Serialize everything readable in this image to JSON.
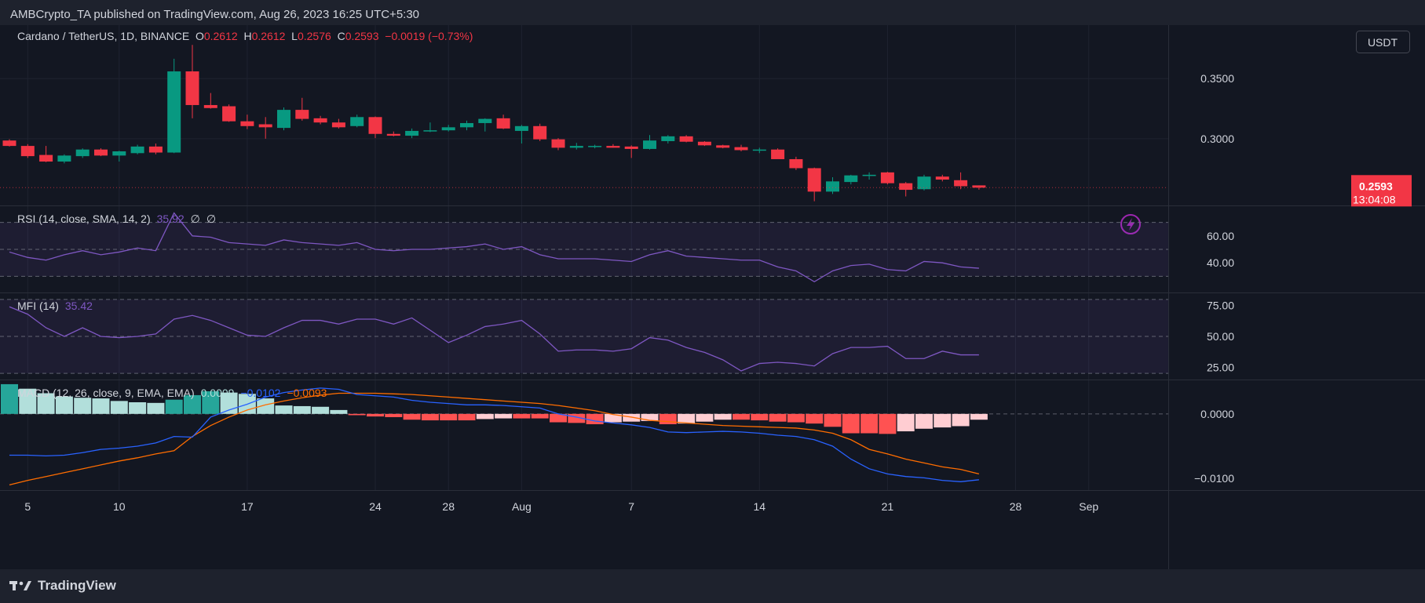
{
  "header": {
    "publisher": "AMBCrypto_TA published on TradingView.com, Aug 26, 2023 16:25 UTC+5:30"
  },
  "legend": {
    "symbol": "Cardano / TetherUS, 1D, BINANCE",
    "o_label": "O",
    "o": "0.2612",
    "h_label": "H",
    "h": "0.2612",
    "l_label": "L",
    "l": "0.2576",
    "c_label": "C",
    "c": "0.2593",
    "change": "−0.0019 (−0.73%)"
  },
  "currency_button": "USDT",
  "price_badge": {
    "price": "0.2593",
    "countdown": "13:04:08"
  },
  "footer": {
    "brand": "TradingView"
  },
  "colors": {
    "up": "#089981",
    "down": "#f23645",
    "rsi": "#7e57c2",
    "macd": "#2962ff",
    "signal": "#ff6d00",
    "hist_up_strong": "#26a69a",
    "hist_up_weak": "#b2dfdb",
    "hist_down_strong": "#ff5252",
    "hist_down_weak": "#ffcdd2"
  },
  "chart_data": [
    {
      "type": "candlestick",
      "title": "Cardano / TetherUS, 1D, BINANCE",
      "x_start_date": "2023-07-04",
      "ylim": [
        0.2445,
        0.3945
      ],
      "yticks": [
        "0.3500",
        "0.3000"
      ],
      "xticks": [
        {
          "label": "5",
          "date": "2023-07-05"
        },
        {
          "label": "10",
          "date": "2023-07-10"
        },
        {
          "label": "17",
          "date": "2023-07-17"
        },
        {
          "label": "24",
          "date": "2023-07-24"
        },
        {
          "label": "28",
          "date": "2023-07-28"
        },
        {
          "label": "Aug",
          "date": "2023-08-01"
        },
        {
          "label": "7",
          "date": "2023-08-07"
        },
        {
          "label": "14",
          "date": "2023-08-14"
        },
        {
          "label": "21",
          "date": "2023-08-21"
        },
        {
          "label": "28",
          "date": "2023-08-28"
        },
        {
          "label": "Sep",
          "date": "2023-09-01"
        }
      ],
      "candles": [
        {
          "d": "2023-07-04",
          "o": 0.2985,
          "h": 0.2995,
          "l": 0.2935,
          "c": 0.294
        },
        {
          "d": "2023-07-05",
          "o": 0.294,
          "h": 0.2955,
          "l": 0.284,
          "c": 0.2855
        },
        {
          "d": "2023-07-06",
          "o": 0.2865,
          "h": 0.294,
          "l": 0.2805,
          "c": 0.281
        },
        {
          "d": "2023-07-07",
          "o": 0.281,
          "h": 0.287,
          "l": 0.2795,
          "c": 0.286
        },
        {
          "d": "2023-07-08",
          "o": 0.2855,
          "h": 0.292,
          "l": 0.284,
          "c": 0.291
        },
        {
          "d": "2023-07-09",
          "o": 0.291,
          "h": 0.292,
          "l": 0.2855,
          "c": 0.286
        },
        {
          "d": "2023-07-10",
          "o": 0.286,
          "h": 0.29,
          "l": 0.281,
          "c": 0.2895
        },
        {
          "d": "2023-07-11",
          "o": 0.288,
          "h": 0.295,
          "l": 0.287,
          "c": 0.2935
        },
        {
          "d": "2023-07-12",
          "o": 0.2935,
          "h": 0.296,
          "l": 0.287,
          "c": 0.2885
        },
        {
          "d": "2023-07-13",
          "o": 0.2885,
          "h": 0.3665,
          "l": 0.288,
          "c": 0.356
        },
        {
          "d": "2023-07-14",
          "o": 0.356,
          "h": 0.378,
          "l": 0.317,
          "c": 0.328
        },
        {
          "d": "2023-07-15",
          "o": 0.328,
          "h": 0.338,
          "l": 0.325,
          "c": 0.3255
        },
        {
          "d": "2023-07-16",
          "o": 0.327,
          "h": 0.3285,
          "l": 0.314,
          "c": 0.3145
        },
        {
          "d": "2023-07-17",
          "o": 0.3145,
          "h": 0.32,
          "l": 0.308,
          "c": 0.3105
        },
        {
          "d": "2023-07-18",
          "o": 0.312,
          "h": 0.318,
          "l": 0.3,
          "c": 0.3095
        },
        {
          "d": "2023-07-19",
          "o": 0.309,
          "h": 0.326,
          "l": 0.307,
          "c": 0.324
        },
        {
          "d": "2023-07-20",
          "o": 0.324,
          "h": 0.334,
          "l": 0.315,
          "c": 0.3165
        },
        {
          "d": "2023-07-21",
          "o": 0.317,
          "h": 0.319,
          "l": 0.312,
          "c": 0.3135
        },
        {
          "d": "2023-07-22",
          "o": 0.3135,
          "h": 0.3165,
          "l": 0.3085,
          "c": 0.3095
        },
        {
          "d": "2023-07-23",
          "o": 0.3105,
          "h": 0.32,
          "l": 0.3095,
          "c": 0.318
        },
        {
          "d": "2023-07-24",
          "o": 0.318,
          "h": 0.3185,
          "l": 0.3005,
          "c": 0.304
        },
        {
          "d": "2023-07-25",
          "o": 0.304,
          "h": 0.306,
          "l": 0.302,
          "c": 0.3025
        },
        {
          "d": "2023-07-26",
          "o": 0.3025,
          "h": 0.3085,
          "l": 0.3005,
          "c": 0.3065
        },
        {
          "d": "2023-07-27",
          "o": 0.3065,
          "h": 0.3135,
          "l": 0.3055,
          "c": 0.307
        },
        {
          "d": "2023-07-28",
          "o": 0.307,
          "h": 0.3115,
          "l": 0.306,
          "c": 0.3095
        },
        {
          "d": "2023-07-29",
          "o": 0.3095,
          "h": 0.315,
          "l": 0.307,
          "c": 0.313
        },
        {
          "d": "2023-07-30",
          "o": 0.313,
          "h": 0.317,
          "l": 0.306,
          "c": 0.3165
        },
        {
          "d": "2023-07-31",
          "o": 0.317,
          "h": 0.32,
          "l": 0.308,
          "c": 0.3085
        },
        {
          "d": "2023-08-01",
          "o": 0.3065,
          "h": 0.3115,
          "l": 0.296,
          "c": 0.3105
        },
        {
          "d": "2023-08-02",
          "o": 0.3105,
          "h": 0.3125,
          "l": 0.298,
          "c": 0.2995
        },
        {
          "d": "2023-08-03",
          "o": 0.2995,
          "h": 0.3005,
          "l": 0.2905,
          "c": 0.2925
        },
        {
          "d": "2023-08-04",
          "o": 0.2925,
          "h": 0.2965,
          "l": 0.291,
          "c": 0.294
        },
        {
          "d": "2023-08-05",
          "o": 0.2935,
          "h": 0.295,
          "l": 0.292,
          "c": 0.294
        },
        {
          "d": "2023-08-06",
          "o": 0.294,
          "h": 0.2955,
          "l": 0.2925,
          "c": 0.2925
        },
        {
          "d": "2023-08-07",
          "o": 0.2935,
          "h": 0.2945,
          "l": 0.284,
          "c": 0.2915
        },
        {
          "d": "2023-08-08",
          "o": 0.2915,
          "h": 0.303,
          "l": 0.291,
          "c": 0.2985
        },
        {
          "d": "2023-08-09",
          "o": 0.298,
          "h": 0.303,
          "l": 0.296,
          "c": 0.302
        },
        {
          "d": "2023-08-10",
          "o": 0.302,
          "h": 0.303,
          "l": 0.297,
          "c": 0.2975
        },
        {
          "d": "2023-08-11",
          "o": 0.2975,
          "h": 0.298,
          "l": 0.294,
          "c": 0.2945
        },
        {
          "d": "2023-08-12",
          "o": 0.2945,
          "h": 0.295,
          "l": 0.292,
          "c": 0.2925
        },
        {
          "d": "2023-08-13",
          "o": 0.293,
          "h": 0.295,
          "l": 0.2895,
          "c": 0.2905
        },
        {
          "d": "2023-08-14",
          "o": 0.2905,
          "h": 0.2925,
          "l": 0.288,
          "c": 0.291
        },
        {
          "d": "2023-08-15",
          "o": 0.291,
          "h": 0.292,
          "l": 0.284,
          "c": 0.283
        },
        {
          "d": "2023-08-16",
          "o": 0.283,
          "h": 0.285,
          "l": 0.274,
          "c": 0.2755
        },
        {
          "d": "2023-08-17",
          "o": 0.2755,
          "h": 0.276,
          "l": 0.248,
          "c": 0.256
        },
        {
          "d": "2023-08-18",
          "o": 0.256,
          "h": 0.268,
          "l": 0.254,
          "c": 0.2645
        },
        {
          "d": "2023-08-19",
          "o": 0.264,
          "h": 0.27,
          "l": 0.262,
          "c": 0.2695
        },
        {
          "d": "2023-08-20",
          "o": 0.269,
          "h": 0.272,
          "l": 0.266,
          "c": 0.27
        },
        {
          "d": "2023-08-21",
          "o": 0.272,
          "h": 0.2725,
          "l": 0.262,
          "c": 0.263
        },
        {
          "d": "2023-08-22",
          "o": 0.263,
          "h": 0.264,
          "l": 0.252,
          "c": 0.2575
        },
        {
          "d": "2023-08-23",
          "o": 0.258,
          "h": 0.27,
          "l": 0.257,
          "c": 0.2685
        },
        {
          "d": "2023-08-24",
          "o": 0.2685,
          "h": 0.27,
          "l": 0.2645,
          "c": 0.266
        },
        {
          "d": "2023-08-25",
          "o": 0.2655,
          "h": 0.272,
          "l": 0.258,
          "c": 0.2605
        },
        {
          "d": "2023-08-26",
          "o": 0.2612,
          "h": 0.2612,
          "l": 0.2576,
          "c": 0.2593
        }
      ]
    },
    {
      "type": "line",
      "title": "RSI (14, close, SMA, 14, 2)",
      "value_label": "35.92",
      "extra_labels": [
        "∅",
        "∅"
      ],
      "ylim": [
        18,
        82
      ],
      "band": [
        30,
        70
      ],
      "midline": 50,
      "yticks": [
        "60.00",
        "40.00"
      ],
      "values": [
        48,
        44,
        42,
        46,
        49,
        46,
        48,
        51,
        49,
        77,
        60,
        59,
        55,
        54,
        53,
        57,
        55,
        54,
        53,
        55,
        50,
        49,
        50,
        50,
        51,
        52,
        54,
        50,
        52,
        46,
        43,
        43,
        43,
        42,
        41,
        46,
        49,
        45,
        44,
        43,
        42,
        42,
        37,
        34,
        26,
        34,
        38,
        39,
        35,
        34,
        41,
        40,
        37,
        36
      ]
    },
    {
      "type": "line",
      "title": "MFI (14)",
      "value_label": "35.42",
      "ylim": [
        15,
        85
      ],
      "band": [
        20,
        80
      ],
      "midline": 50,
      "yticks": [
        "75.00",
        "50.00",
        "25.00"
      ],
      "values": [
        74,
        68,
        57,
        50,
        57,
        50,
        49,
        50,
        52,
        64,
        67,
        63,
        57,
        51,
        50,
        57,
        63,
        63,
        60,
        64,
        64,
        60,
        65,
        55,
        45,
        51,
        58,
        60,
        63,
        52,
        38,
        39,
        39,
        38,
        40,
        49,
        47,
        41,
        37,
        31,
        22,
        28,
        29,
        28,
        26,
        36,
        41,
        41,
        42,
        32,
        32,
        38,
        35,
        35
      ]
    },
    {
      "type": "line",
      "title": "MACD (12, 26, close, 9, EMA, EMA)",
      "value_labels": [
        "0.0009",
        "−0.0102",
        "−0.0093"
      ],
      "ylim": [
        -0.0118,
        0.0052
      ],
      "zero_line": 0,
      "yticks": [
        "0.0000",
        "−0.0100"
      ],
      "series": [
        {
          "name": "MACD",
          "values": [
            -0.0064,
            -0.0064,
            -0.0065,
            -0.0064,
            -0.006,
            -0.0055,
            -0.0053,
            -0.005,
            -0.0045,
            -0.0035,
            -0.0036,
            -0.0005,
            0.0006,
            0.0015,
            0.0026,
            0.0033,
            0.0037,
            0.004,
            0.0038,
            0.003,
            0.0028,
            0.0026,
            0.0021,
            0.0018,
            0.0016,
            0.0014,
            0.0014,
            0.0013,
            0.0011,
            0.0009,
            0.0,
            -0.0005,
            -0.0011,
            -0.0014,
            -0.0017,
            -0.0021,
            -0.0028,
            -0.0029,
            -0.0028,
            -0.0027,
            -0.0028,
            -0.003,
            -0.0033,
            -0.0035,
            -0.004,
            -0.005,
            -0.007,
            -0.0085,
            -0.0093,
            -0.0097,
            -0.0099,
            -0.0103,
            -0.0105,
            -0.0102
          ]
        },
        {
          "name": "Signal",
          "values": [
            -0.011,
            -0.0103,
            -0.0097,
            -0.0091,
            -0.0085,
            -0.0079,
            -0.0073,
            -0.0068,
            -0.0062,
            -0.0057,
            -0.0035,
            -0.0018,
            -0.0005,
            0.0006,
            0.0014,
            0.002,
            0.0025,
            0.0029,
            0.0032,
            0.0032,
            0.0032,
            0.0031,
            0.003,
            0.0028,
            0.0026,
            0.0024,
            0.0022,
            0.002,
            0.0018,
            0.0016,
            0.0013,
            0.0009,
            0.0005,
            -0.0001,
            -0.0005,
            -0.001,
            -0.0012,
            -0.0014,
            -0.0016,
            -0.0018,
            -0.0019,
            -0.002,
            -0.0021,
            -0.0022,
            -0.0025,
            -0.003,
            -0.004,
            -0.0055,
            -0.0062,
            -0.007,
            -0.0076,
            -0.0082,
            -0.0086,
            -0.0093
          ]
        },
        {
          "name": "Histogram",
          "values": [
            0.0046,
            0.0039,
            0.0032,
            0.0027,
            0.0025,
            0.0024,
            0.002,
            0.0018,
            0.0017,
            0.0022,
            0.0029,
            0.0035,
            0.0033,
            0.0031,
            0.0024,
            0.0013,
            0.0012,
            0.0011,
            0.0006,
            -0.0002,
            -0.0004,
            -0.0005,
            -0.0009,
            -0.001,
            -0.001,
            -0.001,
            -0.0008,
            -0.0007,
            -0.0007,
            -0.0007,
            -0.0013,
            -0.0014,
            -0.0016,
            -0.0013,
            -0.0012,
            -0.0011,
            -0.0016,
            -0.0015,
            -0.0012,
            -0.0009,
            -0.0009,
            -0.001,
            -0.0012,
            -0.0013,
            -0.0015,
            -0.002,
            -0.003,
            -0.003,
            -0.0031,
            -0.0027,
            -0.0023,
            -0.0021,
            -0.0019,
            -0.0009
          ]
        }
      ]
    }
  ]
}
